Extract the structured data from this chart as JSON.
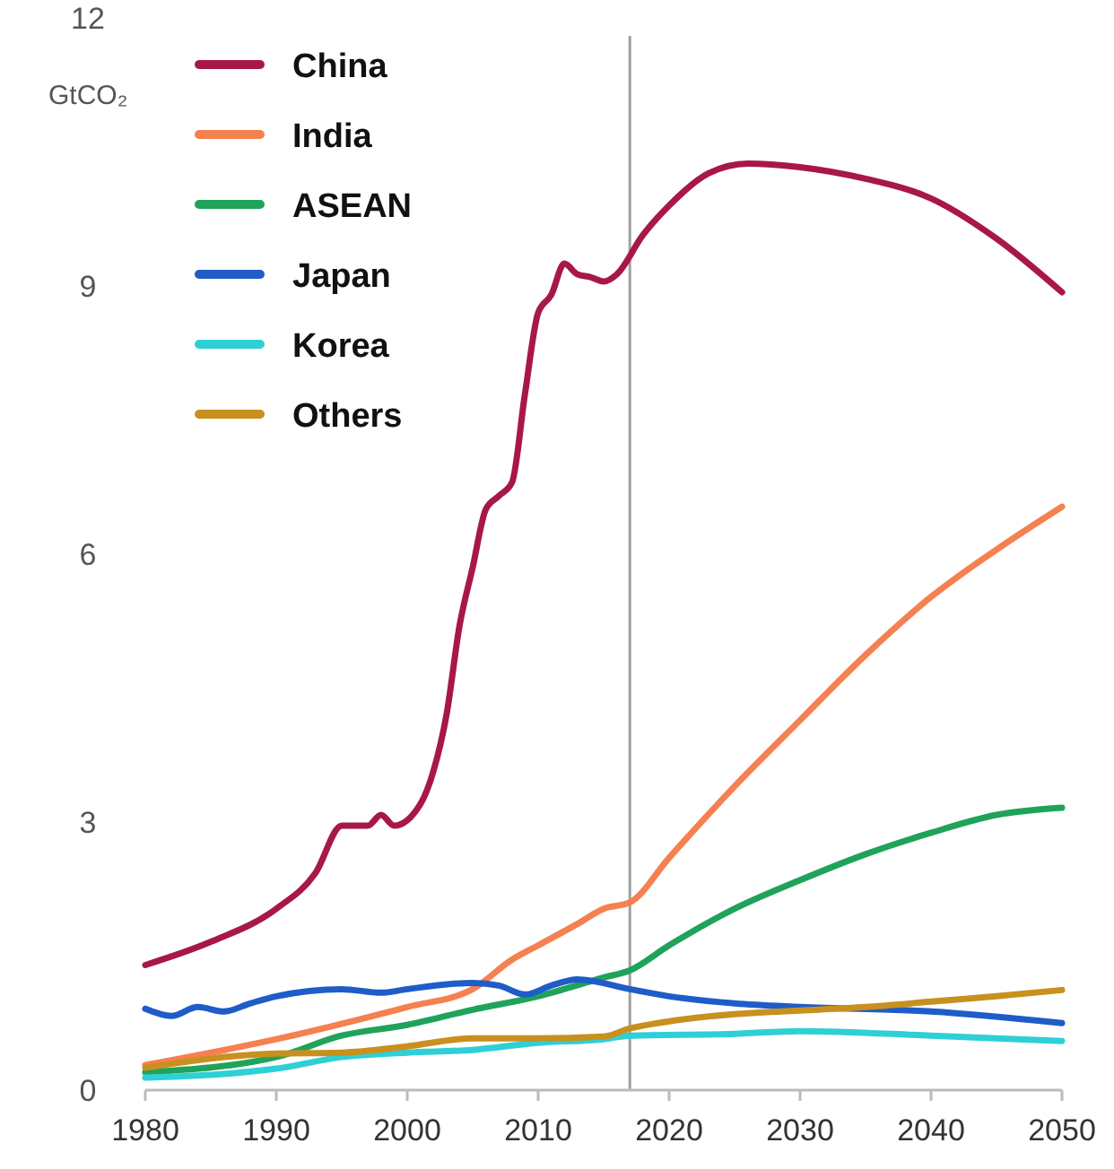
{
  "chart_data": {
    "type": "line",
    "ylabel": "GtCO₂",
    "xlim": [
      1980,
      2050
    ],
    "xticks": [
      1980,
      1990,
      2000,
      2010,
      2020,
      2030,
      2040,
      2050
    ],
    "ylim": [
      0,
      12
    ],
    "yticks": [
      0,
      3,
      6,
      9,
      12
    ],
    "grid": false,
    "legend": "top left",
    "marker": "none",
    "line_style": "solid",
    "ref_lines": [
      {
        "axis": "x",
        "value": 2017,
        "color": "#a0a0a0"
      }
    ],
    "series": [
      {
        "name": "China",
        "color": "#a8174a",
        "x": [
          1980,
          1985,
          1990,
          1993,
          1995,
          1997,
          1998,
          1999,
          2001,
          2002,
          2003,
          2004,
          2005,
          2006,
          2007,
          2008,
          2009,
          2010,
          2011,
          2012,
          2013,
          2014,
          2015,
          2016,
          2018,
          2020,
          2023,
          2026,
          2030,
          2035,
          2040,
          2045,
          2050
        ],
        "values": [
          1.4,
          1.66,
          2.03,
          2.43,
          2.96,
          2.96,
          3.08,
          2.96,
          3.2,
          3.57,
          4.2,
          5.2,
          5.85,
          6.5,
          6.65,
          6.8,
          7.8,
          8.7,
          8.9,
          9.25,
          9.13,
          9.1,
          9.05,
          9.13,
          9.57,
          9.9,
          10.26,
          10.37,
          10.33,
          10.2,
          9.98,
          9.53,
          8.93
        ]
      },
      {
        "name": "India",
        "color": "#f58050",
        "x": [
          1980,
          1990,
          2000,
          2005,
          2008,
          2010,
          2013,
          2015,
          2017,
          2020,
          2025,
          2030,
          2035,
          2040,
          2045,
          2050
        ],
        "values": [
          0.28,
          0.57,
          0.93,
          1.13,
          1.46,
          1.62,
          1.86,
          2.03,
          2.1,
          2.6,
          3.4,
          4.14,
          4.87,
          5.52,
          6.05,
          6.53
        ]
      },
      {
        "name": "ASEAN",
        "color": "#1fa35a",
        "x": [
          1980,
          1990,
          1995,
          2000,
          2005,
          2010,
          2015,
          2017,
          2020,
          2025,
          2030,
          2035,
          2040,
          2045,
          2050
        ],
        "values": [
          0.2,
          0.37,
          0.61,
          0.73,
          0.9,
          1.05,
          1.26,
          1.34,
          1.62,
          2.03,
          2.35,
          2.64,
          2.88,
          3.08,
          3.16
        ]
      },
      {
        "name": "Japan",
        "color": "#1f5cc8",
        "x": [
          1980,
          1982,
          1984,
          1986,
          1988,
          1990,
          1995,
          1998,
          2000,
          2005,
          2007,
          2009,
          2011,
          2013,
          2017,
          2020,
          2025,
          2030,
          2040,
          2050
        ],
        "values": [
          0.91,
          0.83,
          0.93,
          0.88,
          0.97,
          1.05,
          1.13,
          1.09,
          1.13,
          1.2,
          1.17,
          1.07,
          1.17,
          1.24,
          1.13,
          1.05,
          0.97,
          0.93,
          0.88,
          0.75
        ]
      },
      {
        "name": "Korea",
        "color": "#2fcfd6",
        "x": [
          1980,
          1990,
          1995,
          2000,
          2005,
          2010,
          2015,
          2017,
          2025,
          2030,
          2040,
          2050
        ],
        "values": [
          0.14,
          0.24,
          0.37,
          0.42,
          0.45,
          0.53,
          0.57,
          0.61,
          0.63,
          0.66,
          0.61,
          0.55
        ]
      },
      {
        "name": "Others",
        "color": "#c8901e",
        "x": [
          1980,
          1990,
          1995,
          2000,
          2005,
          2010,
          2015,
          2017,
          2020,
          2025,
          2030,
          2035,
          2040,
          2045,
          2050
        ],
        "values": [
          0.25,
          0.41,
          0.42,
          0.49,
          0.58,
          0.58,
          0.6,
          0.69,
          0.77,
          0.85,
          0.89,
          0.93,
          0.99,
          1.05,
          1.12
        ]
      }
    ]
  }
}
